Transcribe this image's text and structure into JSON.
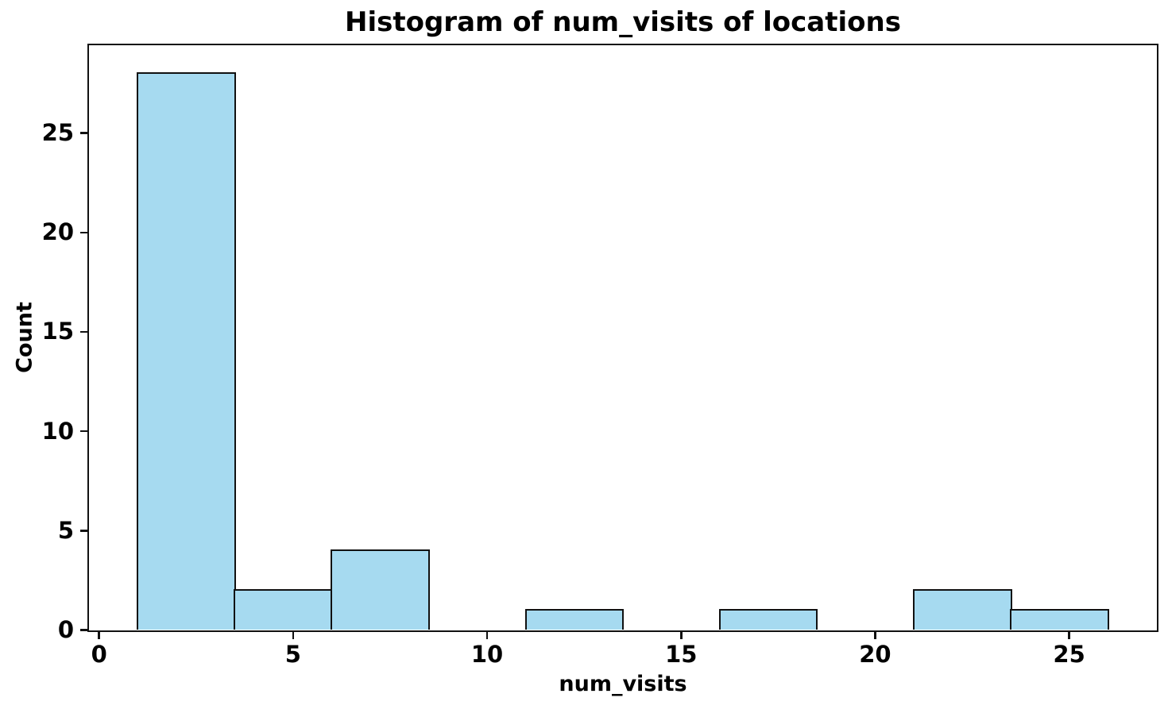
{
  "figure": {
    "background": "#ffffff"
  },
  "chart_data": {
    "type": "histogram",
    "title": "Histogram of num_visits of locations",
    "xlabel": "num_visits",
    "ylabel": "Count",
    "bin_edges": [
      1.0,
      3.5,
      6.0,
      8.5,
      11.0,
      13.5,
      16.0,
      18.5,
      21.0,
      23.5,
      26.0
    ],
    "counts": [
      28,
      2,
      4,
      0,
      1,
      0,
      1,
      0,
      2,
      1
    ],
    "xticks": [
      0,
      5,
      10,
      15,
      20,
      25
    ],
    "yticks": [
      0,
      5,
      10,
      15,
      20,
      25
    ],
    "xlim": [
      -0.25,
      27.25
    ],
    "ylim": [
      0,
      29.4
    ],
    "grid": false,
    "legend": null,
    "colors": {
      "bar_fill": "#a6daf0",
      "bar_edge": "#111111",
      "spine": "#111111",
      "text": "#000000"
    }
  }
}
